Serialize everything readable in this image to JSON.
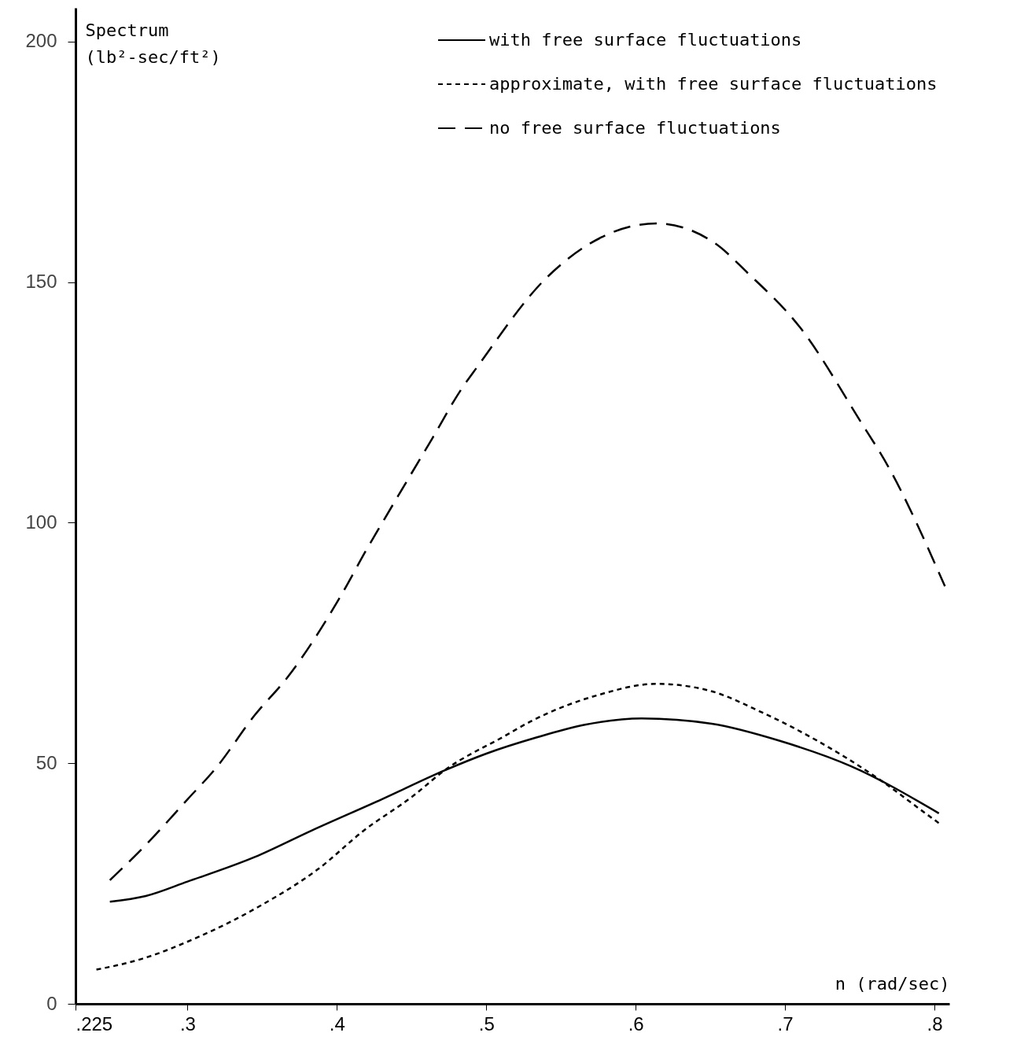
{
  "chart_data": {
    "type": "line",
    "xlabel": "n (rad/sec)",
    "ylabel": "Spectrum (lb²-sec/ft²)",
    "xlim": [
      0.225,
      0.81
    ],
    "ylim": [
      0,
      207
    ],
    "xticks": [
      {
        "value": 0.225,
        "label": ".225"
      },
      {
        "value": 0.3,
        "label": ".3"
      },
      {
        "value": 0.4,
        "label": ".4"
      },
      {
        "value": 0.5,
        "label": ".5"
      },
      {
        "value": 0.6,
        "label": ".6"
      },
      {
        "value": 0.7,
        "label": ".7"
      },
      {
        "value": 0.8,
        "label": ".8"
      }
    ],
    "yticks": [
      0,
      50,
      100,
      150,
      200
    ],
    "grid": false,
    "legend": "top right",
    "series": [
      {
        "name": "with free surface fluctuations",
        "color": "#000000",
        "line_style": "solid",
        "x": [
          0.248,
          0.272,
          0.3,
          0.345,
          0.383,
          0.43,
          0.472,
          0.5,
          0.533,
          0.566,
          0.604,
          0.651,
          0.697,
          0.744,
          0.803
        ],
        "values": [
          21.2,
          22.4,
          25.4,
          30.5,
          36,
          42.5,
          48.5,
          52,
          55.3,
          58,
          59.3,
          58.2,
          54.6,
          49.4,
          39.6
        ]
      },
      {
        "name": "approximate, with free surface fluctuations",
        "color": "#000000",
        "line_style": "dotted",
        "x": [
          0.239,
          0.269,
          0.308,
          0.35,
          0.387,
          0.418,
          0.451,
          0.472,
          0.512,
          0.531,
          0.574,
          0.614,
          0.648,
          0.685,
          0.722,
          0.761,
          0.794,
          0.805
        ],
        "values": [
          7.1,
          9.3,
          14,
          20.6,
          27.9,
          36,
          43.2,
          48.5,
          55.6,
          58.9,
          64.1,
          66.5,
          65.2,
          60.5,
          54.6,
          47.1,
          39.6,
          37.1
        ]
      },
      {
        "name": "no free surface fluctuations",
        "color": "#000000",
        "line_style": "dashed",
        "x": [
          0.248,
          0.272,
          0.3,
          0.319,
          0.345,
          0.367,
          0.403,
          0.42,
          0.43,
          0.464,
          0.483,
          0.494,
          0.54,
          0.577,
          0.614,
          0.653,
          0.675,
          0.71,
          0.75,
          0.769,
          0.807
        ],
        "values": [
          25.7,
          33,
          42.5,
          49,
          60,
          67.9,
          85,
          94.5,
          99.8,
          117.6,
          127.6,
          132.4,
          150.8,
          159.3,
          162.2,
          158.1,
          151.9,
          140.6,
          121.3,
          111.7,
          86.8
        ]
      }
    ]
  }
}
